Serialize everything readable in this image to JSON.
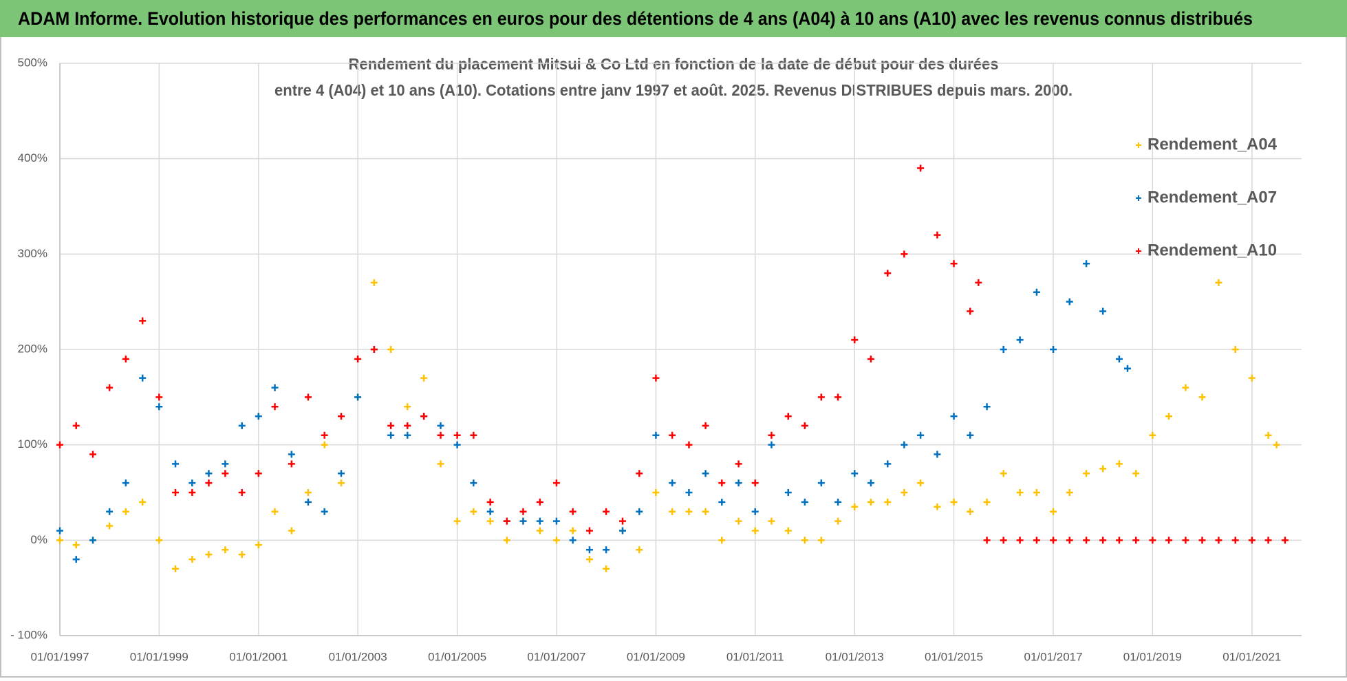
{
  "header": {
    "title": "ADAM Informe. Evolution historique des performances en euros pour des détentions de 4 ans (A04) à 10 ans (A10) avec les revenus connus distribués"
  },
  "chart_data": {
    "type": "scatter",
    "title": "Rendement du placement Mitsui & Co Ltd en fonction de la date de début pour des durées",
    "subtitle": "entre 4 (A04) et 10 ans (A10). Cotations entre janv 1997 et août. 2025. Revenus DISTRIBUES depuis mars. 2000.",
    "xlim": [
      "1997-01-01",
      "2022-01-01"
    ],
    "xticks": [
      {
        "value": "1997-01-01",
        "label": "01/01/1997"
      },
      {
        "value": "1999-01-01",
        "label": "01/01/1999"
      },
      {
        "value": "2001-01-01",
        "label": "01/01/2001"
      },
      {
        "value": "2003-01-01",
        "label": "01/01/2003"
      },
      {
        "value": "2005-01-01",
        "label": "01/01/2005"
      },
      {
        "value": "2007-01-01",
        "label": "01/01/2007"
      },
      {
        "value": "2009-01-01",
        "label": "01/01/2009"
      },
      {
        "value": "2011-01-01",
        "label": "01/01/2011"
      },
      {
        "value": "2013-01-01",
        "label": "01/01/2013"
      },
      {
        "value": "2015-01-01",
        "label": "01/01/2015"
      },
      {
        "value": "2017-01-01",
        "label": "01/01/2017"
      },
      {
        "value": "2019-01-01",
        "label": "01/01/2019"
      },
      {
        "value": "2021-01-01",
        "label": "01/01/2021"
      }
    ],
    "ylim": [
      -100,
      500
    ],
    "yticks": [
      {
        "value": -100,
        "label": "- 100%"
      },
      {
        "value": 0,
        "label": "0%"
      },
      {
        "value": 100,
        "label": "100%"
      },
      {
        "value": 200,
        "label": "200%"
      },
      {
        "value": 300,
        "label": "300%"
      },
      {
        "value": 400,
        "label": "400%"
      },
      {
        "value": 500,
        "label": "500%"
      }
    ],
    "grid": true,
    "legend": "right",
    "series": [
      {
        "name": "Rendement_A04",
        "color": "#FFC000",
        "x": [
          "1997-01-01",
          "1997-05-01",
          "1997-09-01",
          "1998-01-01",
          "1998-05-01",
          "1998-09-01",
          "1999-01-01",
          "1999-05-01",
          "1999-09-01",
          "2000-01-01",
          "2000-05-01",
          "2000-09-01",
          "2001-01-01",
          "2001-05-01",
          "2001-09-01",
          "2002-01-01",
          "2002-05-01",
          "2002-09-01",
          "2003-01-01",
          "2003-05-01",
          "2003-09-01",
          "2004-01-01",
          "2004-05-01",
          "2004-09-01",
          "2005-01-01",
          "2005-05-01",
          "2005-09-01",
          "2006-01-01",
          "2006-05-01",
          "2006-09-01",
          "2007-01-01",
          "2007-05-01",
          "2007-09-01",
          "2008-01-01",
          "2008-05-01",
          "2008-09-01",
          "2009-01-01",
          "2009-05-01",
          "2009-09-01",
          "2010-01-01",
          "2010-05-01",
          "2010-09-01",
          "2011-01-01",
          "2011-05-01",
          "2011-09-01",
          "2012-01-01",
          "2012-05-01",
          "2012-09-01",
          "2013-01-01",
          "2013-05-01",
          "2013-09-01",
          "2014-01-01",
          "2014-05-01",
          "2014-09-01",
          "2015-01-01",
          "2015-05-01",
          "2015-09-01",
          "2016-01-01",
          "2016-05-01",
          "2016-09-01",
          "2017-01-01",
          "2017-05-01",
          "2017-09-01",
          "2018-01-01",
          "2018-05-01",
          "2018-09-01",
          "2019-01-01",
          "2019-05-01",
          "2019-09-01",
          "2020-01-01",
          "2020-05-01",
          "2020-09-01",
          "2021-01-01",
          "2021-05-01",
          "2021-07-01"
        ],
        "values": [
          0,
          -5,
          0,
          15,
          30,
          40,
          0,
          -30,
          -20,
          -15,
          -10,
          -15,
          -5,
          30,
          10,
          50,
          100,
          60,
          150,
          270,
          200,
          140,
          170,
          80,
          20,
          30,
          20,
          0,
          20,
          10,
          0,
          10,
          -20,
          -30,
          10,
          -10,
          50,
          30,
          30,
          30,
          0,
          20,
          10,
          20,
          10,
          0,
          0,
          20,
          35,
          40,
          40,
          50,
          60,
          35,
          40,
          30,
          40,
          70,
          50,
          50,
          30,
          50,
          70,
          75,
          80,
          70,
          110,
          130,
          160,
          150,
          270,
          200,
          170,
          110,
          100
        ]
      },
      {
        "name": "Rendement_A07",
        "color": "#0070C0",
        "x": [
          "1997-01-01",
          "1997-05-01",
          "1997-09-01",
          "1998-01-01",
          "1998-05-01",
          "1998-09-01",
          "1999-01-01",
          "1999-05-01",
          "1999-09-01",
          "2000-01-01",
          "2000-05-01",
          "2000-09-01",
          "2001-01-01",
          "2001-05-01",
          "2001-09-01",
          "2002-01-01",
          "2002-05-01",
          "2002-09-01",
          "2003-01-01",
          "2003-05-01",
          "2003-09-01",
          "2004-01-01",
          "2004-05-01",
          "2004-09-01",
          "2005-01-01",
          "2005-05-01",
          "2005-09-01",
          "2006-01-01",
          "2006-05-01",
          "2006-09-01",
          "2007-01-01",
          "2007-05-01",
          "2007-09-01",
          "2008-01-01",
          "2008-05-01",
          "2008-09-01",
          "2009-01-01",
          "2009-05-01",
          "2009-09-01",
          "2010-01-01",
          "2010-05-01",
          "2010-09-01",
          "2011-01-01",
          "2011-05-01",
          "2011-09-01",
          "2012-01-01",
          "2012-05-01",
          "2012-09-01",
          "2013-01-01",
          "2013-05-01",
          "2013-09-01",
          "2014-01-01",
          "2014-05-01",
          "2014-09-01",
          "2015-01-01",
          "2015-05-01",
          "2015-09-01",
          "2016-01-01",
          "2016-05-01",
          "2016-09-01",
          "2017-01-01",
          "2017-05-01",
          "2017-09-01",
          "2018-01-01",
          "2018-05-01",
          "2018-07-01"
        ],
        "values": [
          10,
          -20,
          0,
          30,
          60,
          170,
          140,
          80,
          60,
          70,
          80,
          120,
          130,
          160,
          90,
          40,
          30,
          70,
          150,
          200,
          110,
          110,
          130,
          120,
          100,
          60,
          30,
          20,
          20,
          20,
          20,
          0,
          -10,
          -10,
          10,
          30,
          110,
          60,
          50,
          70,
          40,
          60,
          30,
          100,
          50,
          40,
          60,
          40,
          70,
          60,
          80,
          100,
          110,
          90,
          130,
          110,
          140,
          200,
          210,
          260,
          200,
          250,
          290,
          240,
          190,
          180
        ]
      },
      {
        "name": "Rendement_A10",
        "color": "#FF0000",
        "x": [
          "1997-01-01",
          "1997-05-01",
          "1997-09-01",
          "1998-01-01",
          "1998-05-01",
          "1998-09-01",
          "1999-01-01",
          "1999-05-01",
          "1999-09-01",
          "2000-01-01",
          "2000-05-01",
          "2000-09-01",
          "2001-01-01",
          "2001-05-01",
          "2001-09-01",
          "2002-01-01",
          "2002-05-01",
          "2002-09-01",
          "2003-01-01",
          "2003-05-01",
          "2003-09-01",
          "2004-01-01",
          "2004-05-01",
          "2004-09-01",
          "2005-01-01",
          "2005-05-01",
          "2005-09-01",
          "2006-01-01",
          "2006-05-01",
          "2006-09-01",
          "2007-01-01",
          "2007-05-01",
          "2007-09-01",
          "2008-01-01",
          "2008-05-01",
          "2008-09-01",
          "2009-01-01",
          "2009-05-01",
          "2009-09-01",
          "2010-01-01",
          "2010-05-01",
          "2010-09-01",
          "2011-01-01",
          "2011-05-01",
          "2011-09-01",
          "2012-01-01",
          "2012-05-01",
          "2012-09-01",
          "2013-01-01",
          "2013-05-01",
          "2013-09-01",
          "2014-01-01",
          "2014-05-01",
          "2014-09-01",
          "2015-01-01",
          "2015-05-01",
          "2015-07-01",
          "2015-09-01",
          "2016-01-01",
          "2016-05-01",
          "2016-09-01",
          "2017-01-01",
          "2017-05-01",
          "2017-09-01",
          "2018-01-01",
          "2018-05-01",
          "2018-09-01",
          "2019-01-01",
          "2019-05-01",
          "2019-09-01",
          "2020-01-01",
          "2020-05-01",
          "2020-09-01",
          "2021-01-01",
          "2021-05-01",
          "2021-09-01"
        ],
        "values": [
          100,
          120,
          90,
          160,
          190,
          230,
          150,
          50,
          50,
          60,
          70,
          50,
          70,
          140,
          80,
          150,
          110,
          130,
          190,
          200,
          120,
          120,
          130,
          110,
          110,
          110,
          40,
          20,
          30,
          40,
          60,
          30,
          10,
          30,
          20,
          70,
          170,
          110,
          100,
          120,
          60,
          80,
          60,
          110,
          130,
          120,
          150,
          150,
          210,
          190,
          280,
          300,
          390,
          320,
          290,
          240,
          270,
          0,
          0,
          0,
          0,
          0,
          0,
          0,
          0,
          0,
          0,
          0,
          0,
          0,
          0,
          0,
          0,
          0,
          0,
          0
        ]
      }
    ]
  }
}
